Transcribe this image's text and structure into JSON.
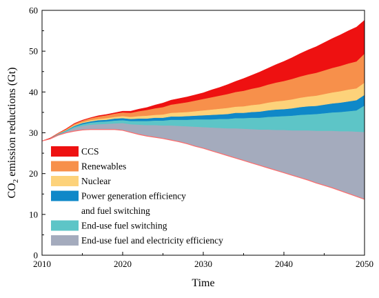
{
  "chart_data": {
    "type": "area",
    "stacked": true,
    "xlabel": "Time",
    "ylabel": {
      "prefix": "CO",
      "subscript": "2",
      "suffix": " emission reductions (Gt)"
    },
    "xlim": [
      2010,
      2050
    ],
    "ylim": [
      0,
      60
    ],
    "xticks": [
      2010,
      2020,
      2030,
      2040,
      2050
    ],
    "yticks": [
      0,
      10,
      20,
      30,
      40,
      50,
      60
    ],
    "grid": false,
    "legend_placement": "bottom-left",
    "x": [
      2010,
      2011,
      2012,
      2013,
      2014,
      2015,
      2016,
      2017,
      2018,
      2019,
      2020,
      2021,
      2022,
      2023,
      2024,
      2025,
      2026,
      2027,
      2028,
      2029,
      2030,
      2031,
      2032,
      2033,
      2034,
      2035,
      2036,
      2037,
      2038,
      2039,
      2040,
      2041,
      2042,
      2043,
      2044,
      2045,
      2046,
      2047,
      2048,
      2049,
      2050
    ],
    "baseline": [
      28.0,
      28.5,
      29.4,
      30.0,
      30.4,
      30.7,
      30.8,
      30.8,
      30.8,
      30.8,
      30.6,
      30.1,
      29.6,
      29.2,
      28.9,
      28.6,
      28.2,
      27.8,
      27.3,
      26.7,
      26.2,
      25.6,
      25.0,
      24.4,
      23.8,
      23.2,
      22.6,
      22.0,
      21.4,
      20.8,
      20.2,
      19.6,
      19.0,
      18.4,
      17.7,
      17.1,
      16.5,
      15.8,
      15.1,
      14.4,
      13.7
    ],
    "series": [
      {
        "name": "End-use fuel and electricity efficiency",
        "color": "#a4abbd",
        "values": [
          0.0,
          0.2,
          0.1,
          0.3,
          0.8,
          1.0,
          1.2,
          1.3,
          1.4,
          1.5,
          1.8,
          2.0,
          2.4,
          2.7,
          3.0,
          3.2,
          3.6,
          3.9,
          4.3,
          4.8,
          5.2,
          5.7,
          6.2,
          6.7,
          7.3,
          7.8,
          8.3,
          8.8,
          9.4,
          9.9,
          10.5,
          11.0,
          11.6,
          12.2,
          12.8,
          13.4,
          14.0,
          14.6,
          15.3,
          15.9,
          16.5
        ]
      },
      {
        "name": "End-use fuel switching",
        "color": "#5dc5c7",
        "values": [
          0.0,
          0.0,
          0.1,
          0.2,
          0.3,
          0.4,
          0.5,
          0.6,
          0.6,
          0.7,
          0.7,
          0.8,
          0.9,
          1.0,
          1.1,
          1.2,
          1.4,
          1.5,
          1.6,
          1.8,
          1.9,
          2.0,
          2.2,
          2.3,
          2.5,
          2.6,
          2.8,
          2.9,
          3.1,
          3.3,
          3.4,
          3.6,
          3.8,
          3.9,
          4.1,
          4.3,
          4.5,
          4.7,
          4.9,
          5.2,
          6.5
        ]
      },
      {
        "name": "Power generation efficiency\nand fuel switching",
        "color": "#0f88c8",
        "values": [
          0.0,
          0.0,
          0.1,
          0.1,
          0.2,
          0.3,
          0.3,
          0.4,
          0.4,
          0.5,
          0.5,
          0.5,
          0.6,
          0.6,
          0.7,
          0.7,
          0.8,
          0.8,
          0.9,
          0.9,
          1.0,
          1.1,
          1.1,
          1.2,
          1.3,
          1.3,
          1.4,
          1.5,
          1.6,
          1.7,
          1.7,
          1.8,
          1.9,
          2.0,
          2.0,
          2.1,
          2.2,
          2.3,
          2.4,
          2.5,
          2.6
        ]
      },
      {
        "name": "Nuclear",
        "color": "#fdd27a",
        "values": [
          0.0,
          0.0,
          0.1,
          0.1,
          0.2,
          0.2,
          0.3,
          0.3,
          0.4,
          0.4,
          0.5,
          0.5,
          0.6,
          0.7,
          0.7,
          0.8,
          0.9,
          1.0,
          1.0,
          1.1,
          1.2,
          1.3,
          1.4,
          1.5,
          1.5,
          1.6,
          1.7,
          1.8,
          1.9,
          2.0,
          2.1,
          2.2,
          2.3,
          2.4,
          2.5,
          2.6,
          2.7,
          2.8,
          2.9,
          2.9,
          3.0
        ]
      },
      {
        "name": "Renewables",
        "color": "#f7904b",
        "values": [
          0.0,
          0.0,
          0.1,
          0.2,
          0.3,
          0.4,
          0.5,
          0.6,
          0.7,
          0.8,
          0.9,
          1.0,
          1.2,
          1.4,
          1.6,
          1.8,
          2.0,
          2.2,
          2.4,
          2.6,
          2.8,
          3.0,
          3.2,
          3.4,
          3.6,
          3.8,
          4.0,
          4.2,
          4.4,
          4.6,
          4.8,
          5.0,
          5.2,
          5.4,
          5.6,
          5.8,
          6.0,
          6.2,
          6.4,
          6.6,
          7.1
        ]
      },
      {
        "name": "CCS",
        "color": "#ee1111",
        "values": [
          0.0,
          0.0,
          0.0,
          0.1,
          0.1,
          0.1,
          0.1,
          0.2,
          0.2,
          0.2,
          0.3,
          0.4,
          0.5,
          0.6,
          0.8,
          1.0,
          1.1,
          1.2,
          1.3,
          1.4,
          1.5,
          1.8,
          2.0,
          2.3,
          2.6,
          3.0,
          3.3,
          3.7,
          4.0,
          4.4,
          4.8,
          5.2,
          5.6,
          6.0,
          6.4,
          6.8,
          7.2,
          7.6,
          8.0,
          8.4,
          8.2
        ]
      }
    ],
    "baseline_line_color": "#ff6a6a"
  }
}
